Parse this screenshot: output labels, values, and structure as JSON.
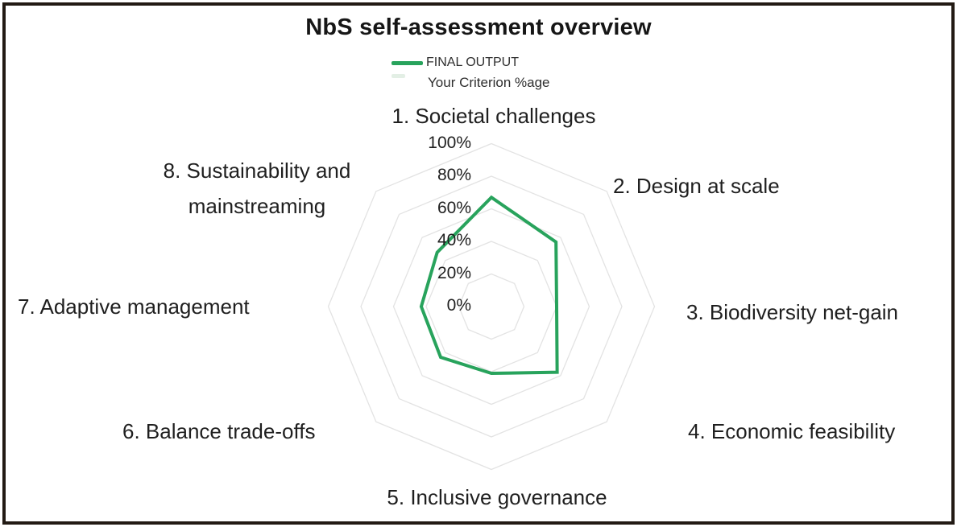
{
  "title": "NbS self-assessment overview",
  "legend": {
    "series1_label": "FINAL OUTPUT",
    "series2_label": "Your Criterion %age"
  },
  "colors": {
    "series_line": "#28a35c",
    "series2_swatch": "#e3efe5",
    "grid_line": "#e3e3e3",
    "text": "#1f1f1f",
    "frame_border": "#221a14",
    "background": "#ffffff"
  },
  "chart_data": {
    "type": "radar",
    "title": "NbS self-assessment overview",
    "legend_entries": [
      "FINAL OUTPUT",
      "Your Criterion %age"
    ],
    "legend_position": "top",
    "categories": [
      "1. Societal challenges",
      "2. Design at scale",
      "3. Biodiversity net-gain",
      "4. Economic feasibility",
      "5. Inclusive governance",
      "6. Balance trade-offs",
      "7. Adaptive management",
      "8. Sustainability and mainstreaming"
    ],
    "series": [
      {
        "name": "FINAL OUTPUT",
        "values": [
          67,
          56,
          40,
          57,
          41,
          44,
          43,
          47
        ]
      }
    ],
    "value_unit": "%",
    "radial_axis": {
      "min": 0,
      "max": 100,
      "step": 20,
      "ticks": [
        "100%",
        "80%",
        "60%",
        "40%",
        "20%",
        "0%"
      ]
    },
    "grid_levels": [
      20,
      40,
      60,
      80,
      100
    ],
    "grid_shape": "concentric-octagons",
    "spokes": false,
    "fill": false
  }
}
